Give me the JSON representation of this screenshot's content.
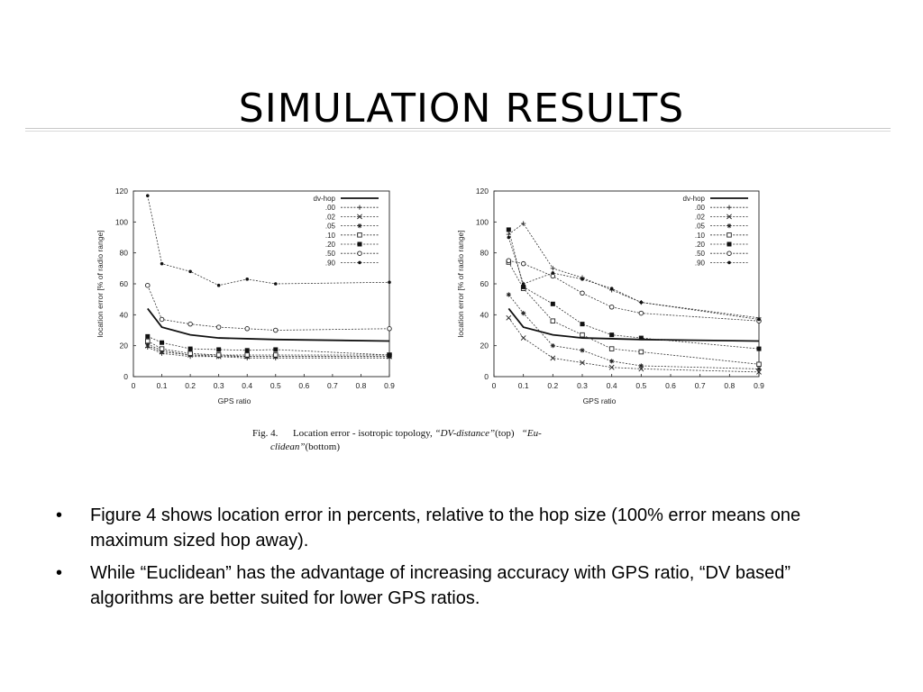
{
  "title": "SIMULATION RESULTS",
  "caption": {
    "fig": "Fig. 4.",
    "text1": "Location error - isotropic topology,",
    "dv": "“DV-distance”",
    "top": "(top)",
    "eu": "“Eu-",
    "clidean": "clidean”",
    "bottom": "(bottom)"
  },
  "bullets": [
    {
      "symbol": "•",
      "text": "Figure 4 shows location error in percents, relative to the hop size (100% error means one maximum sized hop away)."
    },
    {
      "symbol": "•",
      "text": "While “Euclidean” has the advantage of increasing accuracy with GPS ratio, “DV based” algorithms are better suited for lower GPS ratios."
    }
  ],
  "chart_data": [
    {
      "type": "line",
      "xlabel": "GPS ratio",
      "ylabel": "location error [% of radio range]",
      "xlim": [
        0,
        0.9
      ],
      "ylim": [
        0,
        120
      ],
      "xticks": [
        "0",
        "0.1",
        "0.2",
        "0.3",
        "0.4",
        "0.5",
        "0.6",
        "0.7",
        "0.8",
        "0.9"
      ],
      "yticks": [
        "0",
        "20",
        "40",
        "60",
        "80",
        "100",
        "120"
      ],
      "legend_position": "top-right",
      "series": [
        {
          "name": "dv-hop",
          "marker": "none",
          "x": [
            0.05,
            0.1,
            0.2,
            0.3,
            0.4,
            0.5,
            0.9
          ],
          "y": [
            44,
            32,
            27,
            25,
            24.5,
            24,
            23
          ]
        },
        {
          "name": ".00",
          "marker": "plus",
          "x": [
            0.05,
            0.1,
            0.2,
            0.3,
            0.4,
            0.5,
            0.9
          ],
          "y": [
            19,
            15,
            13,
            13,
            12,
            12,
            12
          ]
        },
        {
          "name": ".02",
          "marker": "cross",
          "x": [
            0.05,
            0.1,
            0.2,
            0.3,
            0.4,
            0.5,
            0.9
          ],
          "y": [
            20,
            16,
            14,
            13,
            13,
            13,
            13
          ]
        },
        {
          "name": ".05",
          "marker": "star",
          "x": [
            0.05,
            0.1,
            0.2,
            0.3,
            0.4,
            0.5,
            0.9
          ],
          "y": [
            21,
            17,
            14,
            14,
            13,
            13,
            13
          ]
        },
        {
          "name": ".10",
          "marker": "square-open",
          "x": [
            0.05,
            0.1,
            0.2,
            0.3,
            0.4,
            0.5,
            0.9
          ],
          "y": [
            23,
            18,
            15,
            14,
            14,
            14,
            14
          ]
        },
        {
          "name": ".20",
          "marker": "square-filled",
          "x": [
            0.05,
            0.1,
            0.2,
            0.3,
            0.4,
            0.5,
            0.9
          ],
          "y": [
            26,
            22,
            18,
            17.5,
            17,
            17.5,
            14
          ]
        },
        {
          "name": ".50",
          "marker": "circle-open",
          "x": [
            0.05,
            0.1,
            0.2,
            0.3,
            0.4,
            0.5,
            0.9
          ],
          "y": [
            59,
            37,
            34,
            32,
            31,
            30,
            31
          ]
        },
        {
          "name": ".90",
          "marker": "circle-filled",
          "x": [
            0.05,
            0.1,
            0.2,
            0.3,
            0.4,
            0.5,
            0.9
          ],
          "y": [
            117,
            73,
            68,
            59,
            63,
            60,
            61
          ]
        }
      ]
    },
    {
      "type": "line",
      "xlabel": "GPS ratio",
      "ylabel": "location error [% of radio range]",
      "xlim": [
        0,
        0.9
      ],
      "ylim": [
        0,
        120
      ],
      "xticks": [
        "0",
        "0.1",
        "0.2",
        "0.3",
        "0.4",
        "0.5",
        "0.6",
        "0.7",
        "0.8",
        "0.9"
      ],
      "yticks": [
        "0",
        "20",
        "40",
        "60",
        "80",
        "100",
        "120"
      ],
      "legend_position": "top-right",
      "series": [
        {
          "name": "dv-hop",
          "marker": "none",
          "x": [
            0.05,
            0.1,
            0.2,
            0.3,
            0.4,
            0.5,
            0.9
          ],
          "y": [
            44,
            32,
            27,
            25,
            24.5,
            24,
            23
          ]
        },
        {
          "name": ".00",
          "marker": "plus",
          "x": [
            0.05,
            0.1,
            0.2,
            0.3,
            0.4,
            0.5,
            0.9
          ],
          "y": [
            92,
            99,
            70,
            64,
            56,
            48,
            38
          ]
        },
        {
          "name": ".02",
          "marker": "cross",
          "x": [
            0.05,
            0.1,
            0.2,
            0.3,
            0.4,
            0.5,
            0.9
          ],
          "y": [
            38,
            25,
            12,
            9,
            6,
            5,
            3
          ]
        },
        {
          "name": ".05",
          "marker": "star",
          "x": [
            0.05,
            0.1,
            0.2,
            0.3,
            0.4,
            0.5,
            0.9
          ],
          "y": [
            53,
            41,
            20,
            17,
            10,
            7,
            5
          ]
        },
        {
          "name": ".10",
          "marker": "square-open",
          "x": [
            0.05,
            0.1,
            0.2,
            0.3,
            0.4,
            0.5,
            0.9
          ],
          "y": [
            74,
            57,
            36,
            27,
            18,
            16,
            8
          ]
        },
        {
          "name": ".20",
          "marker": "square-filled",
          "x": [
            0.05,
            0.1,
            0.2,
            0.3,
            0.4,
            0.5,
            0.9
          ],
          "y": [
            95,
            58,
            47,
            34,
            27,
            25,
            18
          ]
        },
        {
          "name": ".50",
          "marker": "circle-open",
          "x": [
            0.05,
            0.1,
            0.2,
            0.3,
            0.4,
            0.5,
            0.9
          ],
          "y": [
            75,
            73,
            65,
            54,
            45,
            41,
            36
          ]
        },
        {
          "name": ".90",
          "marker": "circle-filled",
          "x": [
            0.05,
            0.1,
            0.2,
            0.3,
            0.4,
            0.5,
            0.9
          ],
          "y": [
            90,
            60,
            67,
            63,
            57,
            48,
            37
          ]
        }
      ]
    }
  ]
}
